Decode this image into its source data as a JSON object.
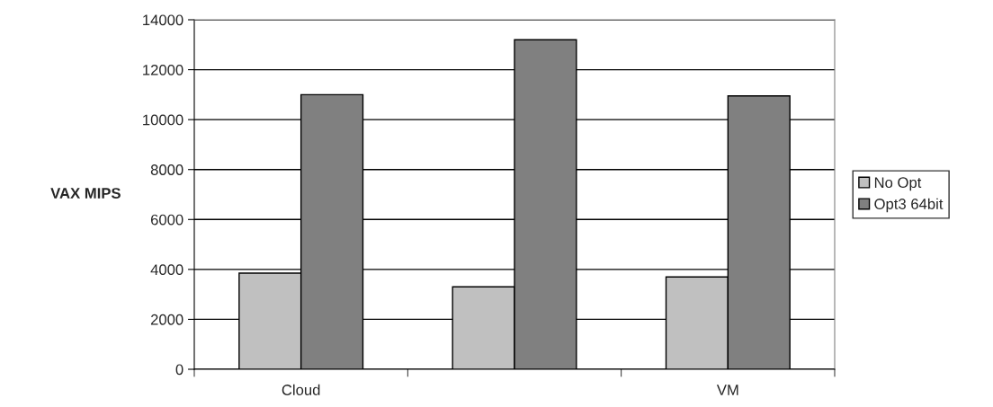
{
  "chart_data": {
    "type": "bar",
    "ylabel": "VAX MIPS",
    "categories": [
      "Cloud",
      null,
      "VM"
    ],
    "series": [
      {
        "name": "No Opt",
        "color": "#c0c0c0",
        "values": [
          3850,
          3300,
          3700
        ]
      },
      {
        "name": "Opt3 64bit",
        "color": "#808080",
        "values": [
          11000,
          13200,
          10950
        ]
      }
    ],
    "ylim": [
      0,
      14000
    ],
    "yticks": [
      0,
      2000,
      4000,
      6000,
      8000,
      10000,
      12000,
      14000
    ],
    "grid": "y",
    "legend": "right"
  }
}
